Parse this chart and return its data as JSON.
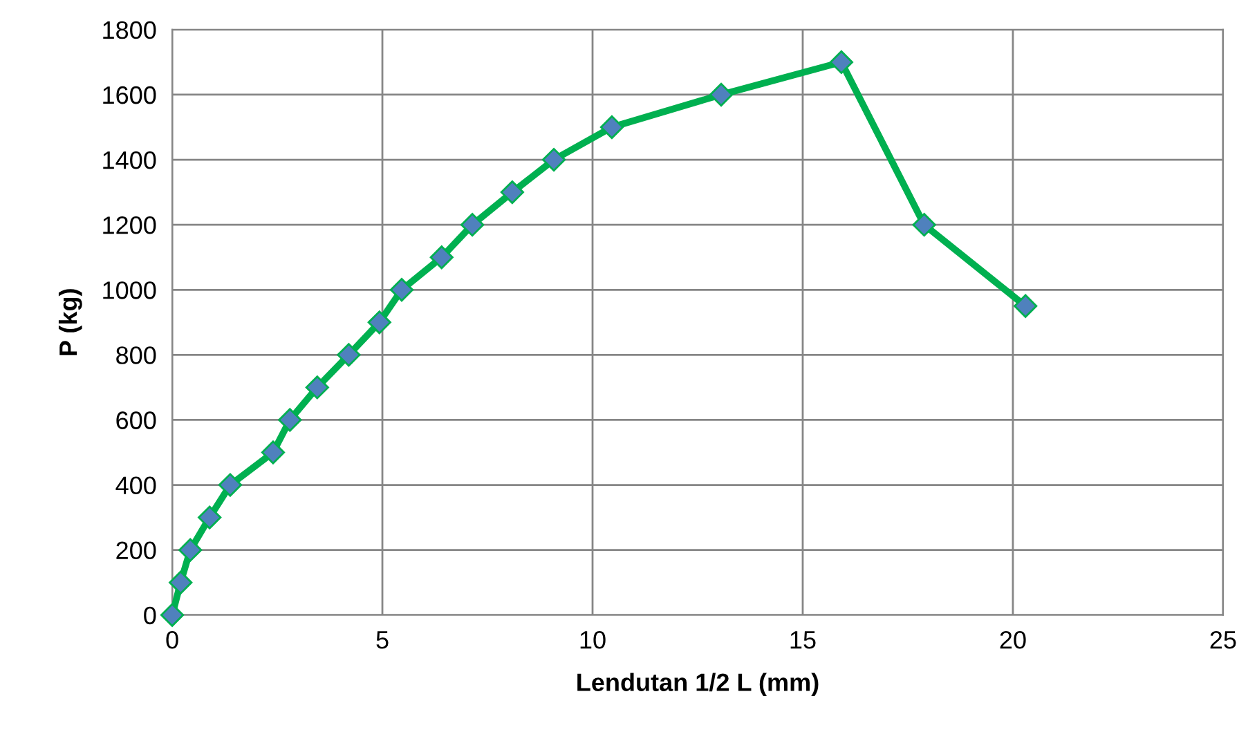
{
  "chart_data": {
    "type": "line",
    "xlabel": "Lendutan 1/2 L (mm)",
    "ylabel": "P (kg)",
    "x": [
      0,
      0.2,
      0.43,
      0.89,
      1.38,
      2.4,
      2.8,
      3.45,
      4.2,
      4.93,
      5.46,
      6.41,
      7.14,
      8.09,
      9.08,
      10.46,
      13.06,
      15.92,
      17.89,
      20.3
    ],
    "series": [
      {
        "color": "#00b050",
        "values": [
          0,
          100,
          200,
          300,
          400,
          500,
          600,
          700,
          800,
          900,
          1000,
          1100,
          1200,
          1300,
          1400,
          1500,
          1600,
          1700,
          1200,
          950
        ]
      }
    ],
    "xlim": [
      0,
      25
    ],
    "xticks": [
      0,
      5,
      10,
      15,
      20,
      25
    ],
    "ylim": [
      0,
      1800
    ],
    "yticks": [
      0,
      200,
      400,
      600,
      800,
      1000,
      1200,
      1400,
      1600,
      1800
    ],
    "grid": true,
    "marker": "diamond",
    "line_style": "solid"
  }
}
